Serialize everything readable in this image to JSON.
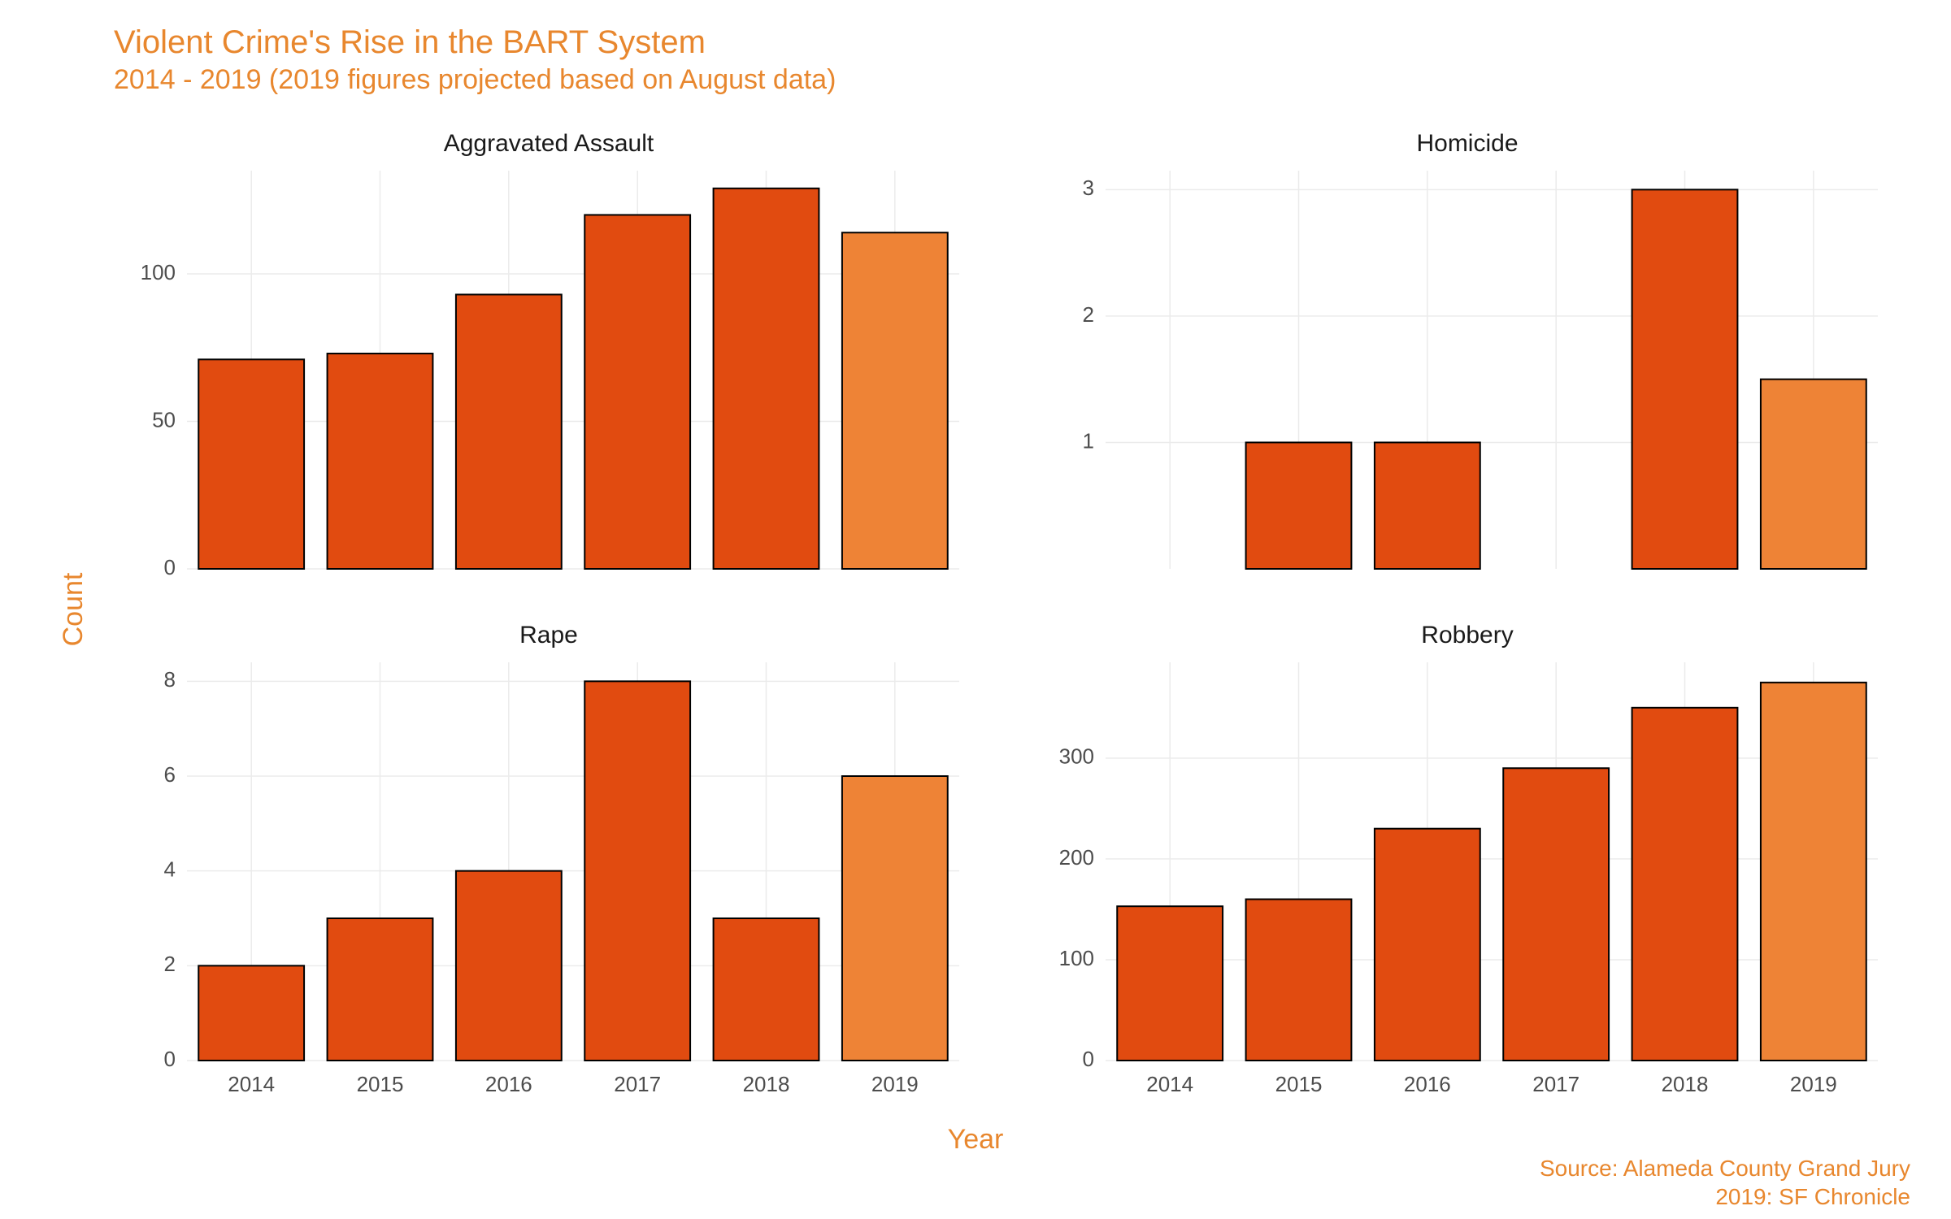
{
  "title": "Violent Crime's Rise in the BART System",
  "subtitle": "2014 - 2019 (2019 figures projected based on August data)",
  "y_axis_title": "Count",
  "x_axis_title": "Year",
  "caption_line1": "Source: Alameda County Grand Jury",
  "caption_line2": "2019: SF Chronicle",
  "colors": {
    "title": "#e8872e",
    "bar_fill": "#e14b10",
    "bar_fill_projected": "#ee8336",
    "bar_stroke": "#000000",
    "grid": "#ebebeb",
    "axis_text": "#4d4d4d",
    "panel_title": "#1a1a1a",
    "background": "#ffffff"
  },
  "style": {
    "title_fontsize": 40,
    "subtitle_fontsize": 34,
    "panel_title_fontsize": 30,
    "axis_title_fontsize": 34,
    "tick_fontsize": 26,
    "caption_fontsize": 28,
    "bar_stroke_width": 2,
    "bar_width": 0.82,
    "grid_stroke_width": 1.5
  },
  "categories": [
    "2014",
    "2015",
    "2016",
    "2017",
    "2018",
    "2019"
  ],
  "projected_index": 5,
  "panels": [
    {
      "title": "Aggravated Assault",
      "type": "bar",
      "values": [
        71,
        73,
        93,
        120,
        129,
        114
      ],
      "ylim": [
        0,
        135
      ],
      "yticks": [
        0,
        50,
        100
      ]
    },
    {
      "title": "Homicide",
      "type": "bar",
      "values": [
        0,
        1,
        1,
        0,
        3,
        1.5
      ],
      "ylim": [
        0,
        3.15
      ],
      "yticks": [
        1,
        2,
        3
      ]
    },
    {
      "title": "Rape",
      "type": "bar",
      "values": [
        2,
        3,
        4,
        8,
        3,
        6
      ],
      "ylim": [
        0,
        8.4
      ],
      "yticks": [
        0,
        2,
        4,
        6,
        8
      ]
    },
    {
      "title": "Robbery",
      "type": "bar",
      "values": [
        153,
        160,
        230,
        290,
        350,
        375
      ],
      "ylim": [
        0,
        395
      ],
      "yticks": [
        0,
        100,
        200,
        300
      ]
    }
  ]
}
